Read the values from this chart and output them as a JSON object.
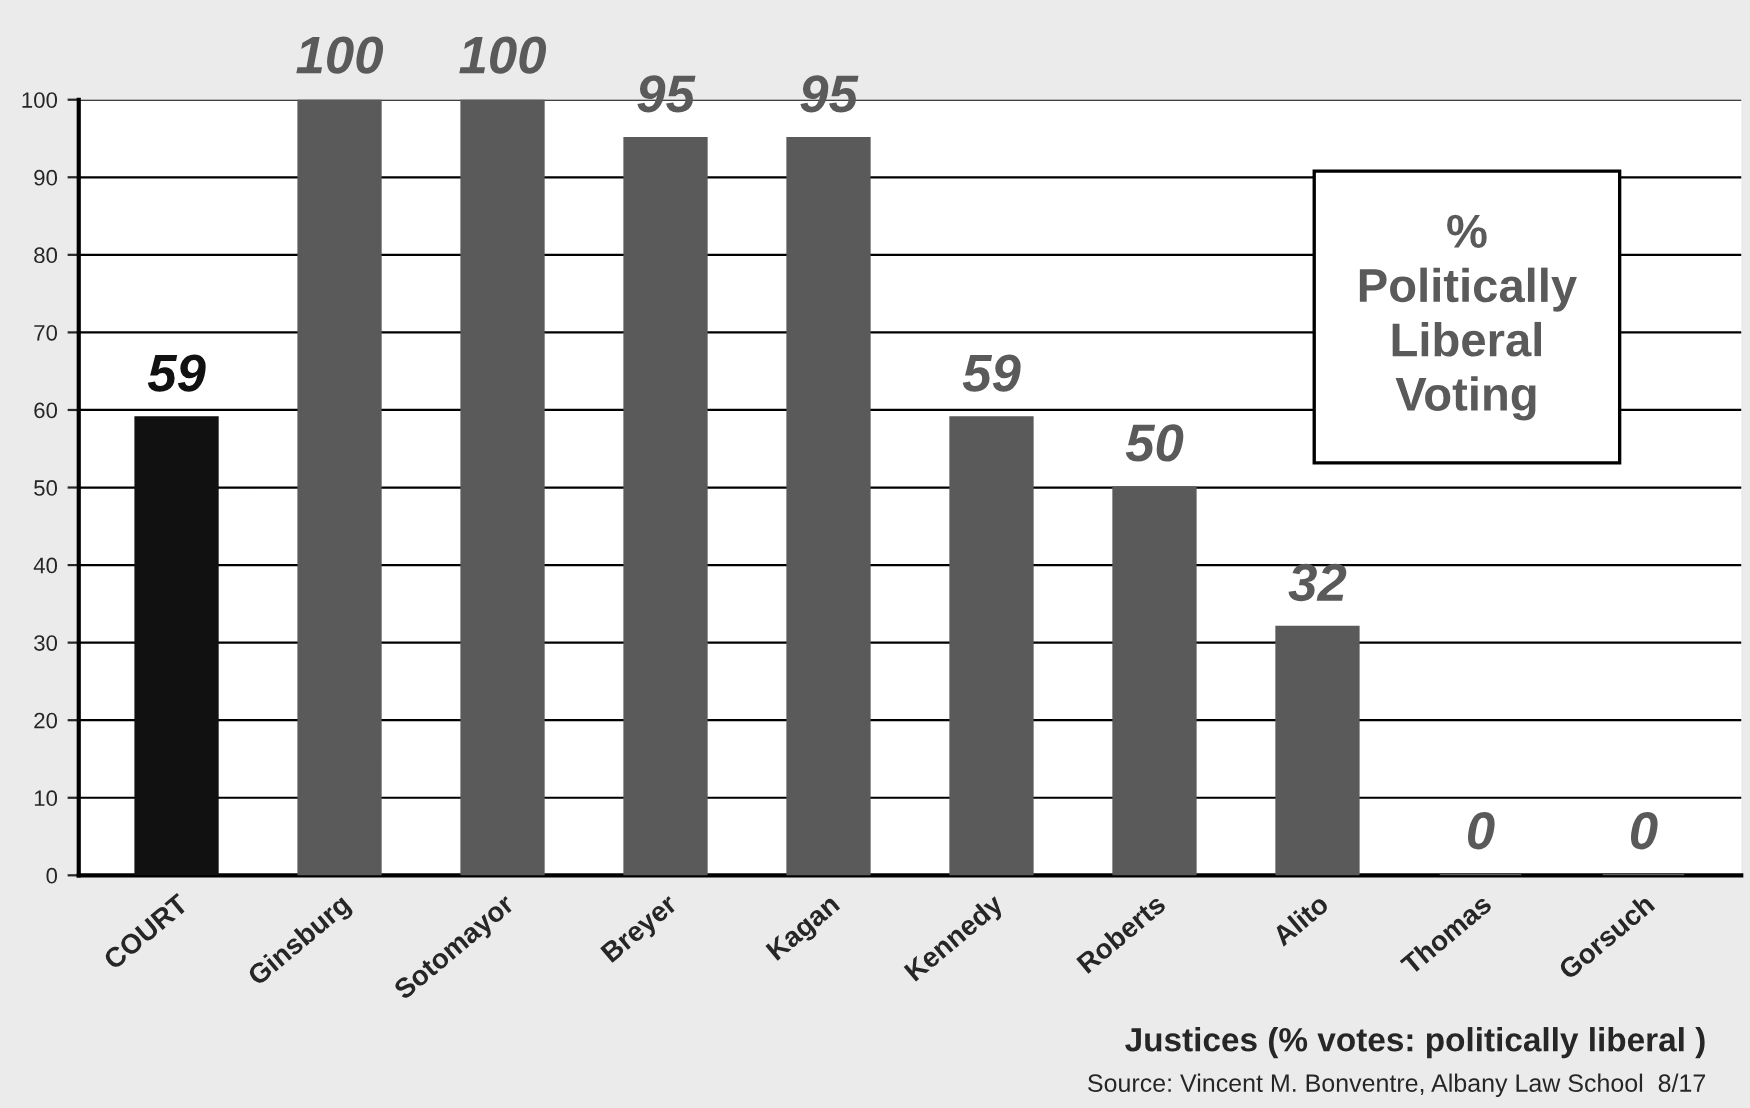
{
  "chart_data": {
    "type": "bar",
    "categories": [
      "COURT",
      "Ginsburg",
      "Sotomayor",
      "Breyer",
      "Kagan",
      "Kennedy",
      "Roberts",
      "Alito",
      "Thomas",
      "Gorsuch"
    ],
    "values": [
      59,
      100,
      100,
      95,
      95,
      59,
      50,
      32,
      0,
      0
    ],
    "colors": [
      "#111111",
      "#5a5a5a",
      "#5a5a5a",
      "#5a5a5a",
      "#5a5a5a",
      "#5a5a5a",
      "#5a5a5a",
      "#5a5a5a",
      "#5a5a5a",
      "#5a5a5a"
    ],
    "ylim": [
      0,
      100
    ],
    "yticks": [
      0,
      10,
      20,
      30,
      40,
      50,
      60,
      70,
      80,
      90,
      100
    ],
    "grid": "y",
    "data_labels": true,
    "xlabel": "Justices (% votes: politically liberal )",
    "annotations": [
      "% Politically Liberal Voting",
      "Source: Vincent M. Bonventre, Albany Law School  8/17"
    ]
  }
}
